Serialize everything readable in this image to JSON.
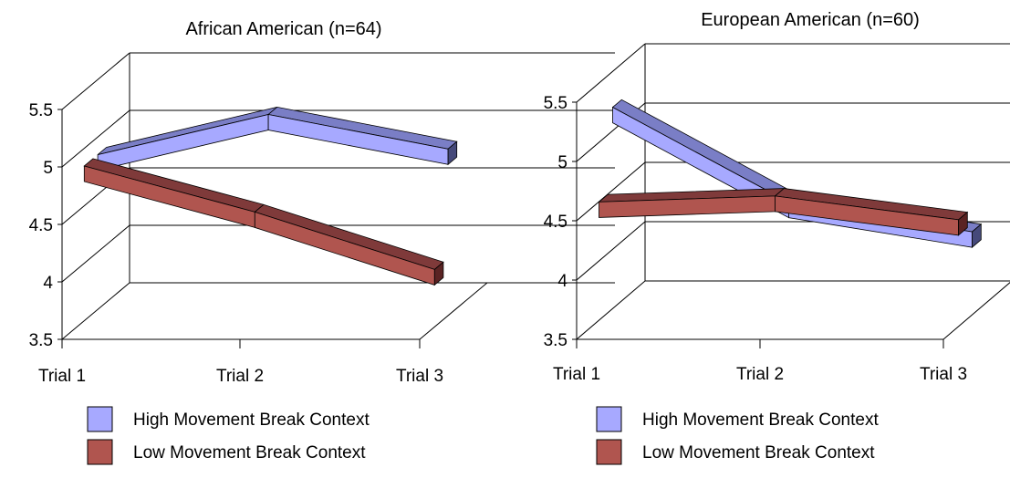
{
  "colors": {
    "high_front": "#a7a9ff",
    "high_top": "#7a7ec6",
    "high_side": "#45497a",
    "low_front": "#b0554f",
    "low_top": "#7f3a3a",
    "low_side": "#5a2323"
  },
  "chart_data": [
    {
      "type": "line",
      "style": "3d-ribbon",
      "title": "African American (n=64)",
      "categories": [
        "Trial 1",
        "Trial 2",
        "Trial 3"
      ],
      "yticks": [
        "3.5",
        "4",
        "4.5",
        "5",
        "5.5"
      ],
      "ylim": [
        3.5,
        5.5
      ],
      "grid": true,
      "legend_position": "bottom",
      "series": [
        {
          "name": "High Movement Break Context",
          "values": [
            4.9,
            5.25,
            4.95
          ],
          "color": "#a7a9ff"
        },
        {
          "name": "Low Movement  Break Context",
          "values": [
            4.9,
            4.5,
            4.0
          ],
          "color": "#b0554f"
        }
      ]
    },
    {
      "type": "line",
      "style": "3d-ribbon",
      "title": "European American (n=60)",
      "categories": [
        "Trial 1",
        "Trial 2",
        "Trial 3"
      ],
      "yticks": [
        "3.5",
        "4",
        "4.5",
        "5",
        "5.5"
      ],
      "ylim": [
        3.5,
        5.5
      ],
      "grid": true,
      "legend_position": "bottom",
      "series": [
        {
          "name": "High Movement Break Context",
          "values": [
            5.25,
            4.45,
            4.2
          ],
          "color": "#a7a9ff"
        },
        {
          "name": "Low Movement Break Context",
          "values": [
            4.55,
            4.6,
            4.4
          ],
          "color": "#b0554f"
        }
      ]
    }
  ]
}
